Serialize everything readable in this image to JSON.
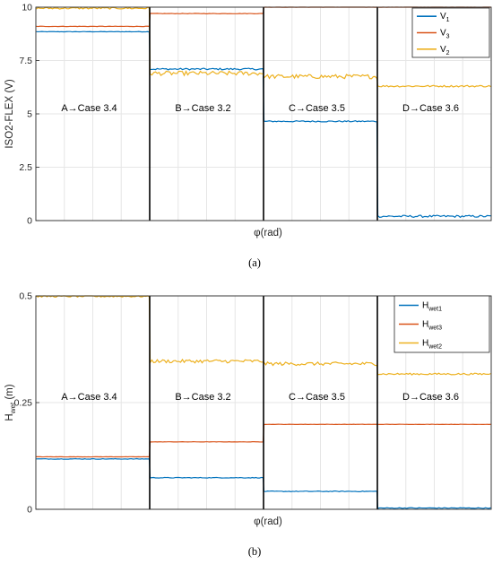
{
  "chart_data": [
    {
      "type": "line",
      "panel_caption": "(a)",
      "xlabel": "φ(rad)",
      "ylabel": "ISO2-FLEX (V)",
      "ylim": [
        0,
        10
      ],
      "yticks": [
        "0",
        "2.5",
        "5",
        "7.5",
        "10"
      ],
      "grid": true,
      "legend_placement": "top-right",
      "segments": 4,
      "segment_annotations": [
        "A→Case 3.4",
        "B→Case 3.2",
        "C→Case 3.5",
        "D→Case 3.6"
      ],
      "series": [
        {
          "name": "V",
          "subscript": "1",
          "color": "#0072BD",
          "values": [
            8.85,
            7.1,
            4.65,
            0.2
          ],
          "noise": [
            0.01,
            0.04,
            0.03,
            0.05
          ]
        },
        {
          "name": "V",
          "subscript": "3",
          "color": "#D95319",
          "values": [
            9.1,
            9.7,
            10.0,
            10.0
          ],
          "noise": [
            0.01,
            0.01,
            0.005,
            0.005
          ]
        },
        {
          "name": "V",
          "subscript": "2",
          "color": "#EDB120",
          "values": [
            9.95,
            6.9,
            6.75,
            6.3
          ],
          "noise": [
            0.04,
            0.1,
            0.1,
            0.04
          ]
        }
      ]
    },
    {
      "type": "line",
      "panel_caption": "(b)",
      "xlabel": "φ(rad)",
      "ylabel": "H",
      "ylabel_subscript": "wet",
      "ylabel_unit": "(m)",
      "ylim": [
        0,
        0.5
      ],
      "yticks": [
        "0",
        "0.25",
        "0.5"
      ],
      "grid": true,
      "legend_placement": "top-right",
      "segments": 4,
      "segment_annotations": [
        "A→Case 3.4",
        "B→Case 3.2",
        "C→Case 3.5",
        "D→Case 3.6"
      ],
      "series": [
        {
          "name": "H",
          "subscript": "wet1",
          "color": "#0072BD",
          "values": [
            0.118,
            0.074,
            0.042,
            0.003
          ],
          "noise": [
            0.0007,
            0.0008,
            0.0008,
            0.0009
          ]
        },
        {
          "name": "H",
          "subscript": "wet3",
          "color": "#D95319",
          "values": [
            0.123,
            0.158,
            0.199,
            0.199
          ],
          "noise": [
            0.0003,
            0.0003,
            0.0003,
            0.0003
          ]
        },
        {
          "name": "H",
          "subscript": "wet2",
          "color": "#EDB120",
          "values": [
            0.499,
            0.347,
            0.341,
            0.317
          ],
          "noise": [
            0.002,
            0.004,
            0.004,
            0.002
          ]
        }
      ]
    }
  ]
}
